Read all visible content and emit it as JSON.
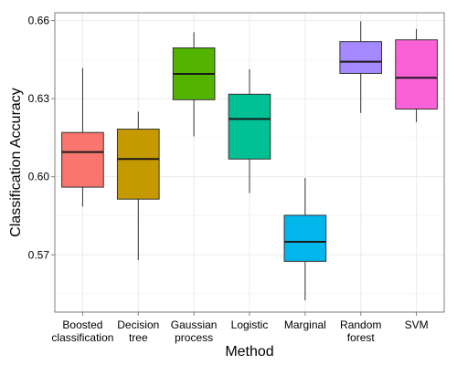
{
  "chart_data": {
    "type": "boxplot",
    "xlabel": "Method",
    "ylabel": "Classification Accuracy",
    "ylim": [
      0.548,
      0.663
    ],
    "yticks": [
      0.57,
      0.6,
      0.63,
      0.66
    ],
    "ytick_labels": [
      "0.57",
      "0.60",
      "0.63",
      "0.66"
    ],
    "grid": true,
    "legend": "none",
    "categories": [
      {
        "label": [
          "Boosted",
          "classification"
        ],
        "color": "#F8766D",
        "min": 0.5885,
        "q1": 0.596,
        "median": 0.6095,
        "q3": 0.617,
        "max": 0.6418
      },
      {
        "label": [
          "Decision",
          "tree"
        ],
        "color": "#C49A00",
        "min": 0.568,
        "q1": 0.5914,
        "median": 0.6068,
        "q3": 0.6183,
        "max": 0.625
      },
      {
        "label": [
          "Gaussian",
          "process"
        ],
        "color": "#53B400",
        "min": 0.6155,
        "q1": 0.6296,
        "median": 0.6395,
        "q3": 0.6495,
        "max": 0.6555
      },
      {
        "label": [
          "Logistic"
        ],
        "color": "#00C094",
        "min": 0.5937,
        "q1": 0.6068,
        "median": 0.6222,
        "q3": 0.6317,
        "max": 0.6413
      },
      {
        "label": [
          "Marginal"
        ],
        "color": "#00B6EB",
        "min": 0.5525,
        "q1": 0.5675,
        "median": 0.575,
        "q3": 0.5852,
        "max": 0.5995
      },
      {
        "label": [
          "Random",
          "forest"
        ],
        "color": "#A58AFF",
        "min": 0.6245,
        "q1": 0.6397,
        "median": 0.6442,
        "q3": 0.6519,
        "max": 0.6597
      },
      {
        "label": [
          "SVM"
        ],
        "color": "#FB61D7",
        "min": 0.621,
        "q1": 0.626,
        "median": 0.638,
        "q3": 0.6526,
        "max": 0.6568
      }
    ]
  }
}
